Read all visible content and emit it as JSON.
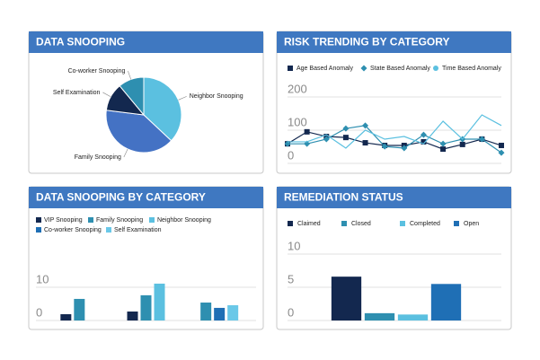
{
  "chart_data": [
    {
      "type": "pie",
      "title": "DATA SNOOPING",
      "categories": [
        "Neighbor Snooping",
        "Family Snooping",
        "Self Examination",
        "Co-worker Snooping"
      ],
      "values": [
        37,
        40,
        12,
        11
      ],
      "colors": [
        "#5bc0e0",
        "#4472c4",
        "#13284f",
        "#2e8fb0"
      ]
    },
    {
      "type": "line",
      "title": "RISK TRENDING BY CATEGORY",
      "categories": [
        null,
        null,
        null,
        null,
        null,
        null,
        null,
        null,
        null,
        null,
        null,
        null
      ],
      "ylim": [
        0,
        200
      ],
      "yticks": [
        0,
        100,
        200
      ],
      "grid": true,
      "series": [
        {
          "name": "Age Based Anomaly",
          "color": "#13284f",
          "marker": "square",
          "values": [
            59,
            95,
            81,
            78,
            62,
            54,
            54,
            65,
            43,
            57,
            73,
            54
          ]
        },
        {
          "name": "State Based Anomaly",
          "color": "#2e8fb0",
          "marker": "diamond",
          "values": [
            59,
            59,
            73,
            105,
            114,
            51,
            46,
            86,
            59,
            73,
            73,
            32
          ]
        },
        {
          "name": "Time Based Anomaly",
          "color": "#5bc0e0",
          "marker": "circle",
          "values": [
            65,
            65,
            86,
            46,
            100,
            73,
            81,
            59,
            127,
            73,
            146,
            114
          ]
        }
      ]
    },
    {
      "type": "bar",
      "title": "DATA SNOOPING BY CATEGORY",
      "categories": [
        null,
        null,
        null
      ],
      "ylim": [
        0,
        20
      ],
      "yticks": [
        0,
        10
      ],
      "grid": true,
      "series": [
        {
          "name": "VIP Snooping",
          "color": "#13284f",
          "values": [
            1.9,
            2.7,
            null
          ]
        },
        {
          "name": "Family Snooping",
          "color": "#2e8fb0",
          "values": [
            6.5,
            7.6,
            5.4
          ]
        },
        {
          "name": "Neighbor Snooping",
          "color": "#5bc0e0",
          "values": [
            null,
            11.1,
            null
          ]
        },
        {
          "name": "Co-worker Snooping",
          "color": "#1f6fb5",
          "values": [
            null,
            null,
            3.8
          ]
        },
        {
          "name": "Self Examination",
          "color": "#6ac8e8",
          "values": [
            null,
            null,
            4.6
          ]
        }
      ]
    },
    {
      "type": "bar",
      "title": "REMEDIATION STATUS",
      "categories": [
        "Claimed",
        "Closed",
        "Completed",
        "Open"
      ],
      "values": [
        6.6,
        1.1,
        0.9,
        5.5
      ],
      "colors": [
        "#13284f",
        "#2e8fb0",
        "#5bc0e0",
        "#1f6fb5"
      ],
      "ylim": [
        0,
        10
      ],
      "yticks": [
        0,
        5,
        10
      ],
      "grid": true
    }
  ]
}
